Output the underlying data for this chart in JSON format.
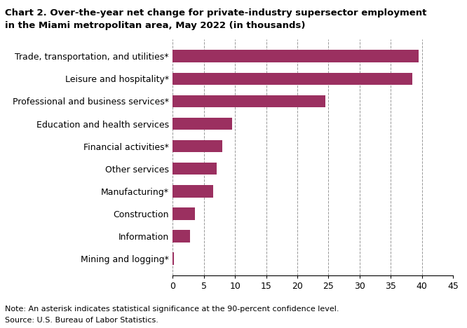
{
  "categories": [
    "Mining and logging*",
    "Information",
    "Construction",
    "Manufacturing*",
    "Other services",
    "Financial activities*",
    "Education and health services",
    "Professional and business services*",
    "Leisure and hospitality*",
    "Trade, transportation, and utilities*"
  ],
  "values": [
    0.2,
    2.8,
    3.5,
    6.5,
    7.0,
    8.0,
    9.5,
    24.5,
    38.5,
    39.5
  ],
  "bar_color": "#9b3060",
  "title_line1": "Chart 2. Over-the-year net change for private-industry supersector employment",
  "title_line2": "in the Miami metropolitan area, May 2022 (in thousands)",
  "xlim": [
    0,
    45
  ],
  "xticks": [
    0,
    5,
    10,
    15,
    20,
    25,
    30,
    35,
    40,
    45
  ],
  "note1": "Note: An asterisk indicates statistical significance at the 90-percent confidence level.",
  "note2": "Source: U.S. Bureau of Labor Statistics.",
  "grid_color": "#999999",
  "background_color": "#ffffff",
  "bar_height": 0.55
}
